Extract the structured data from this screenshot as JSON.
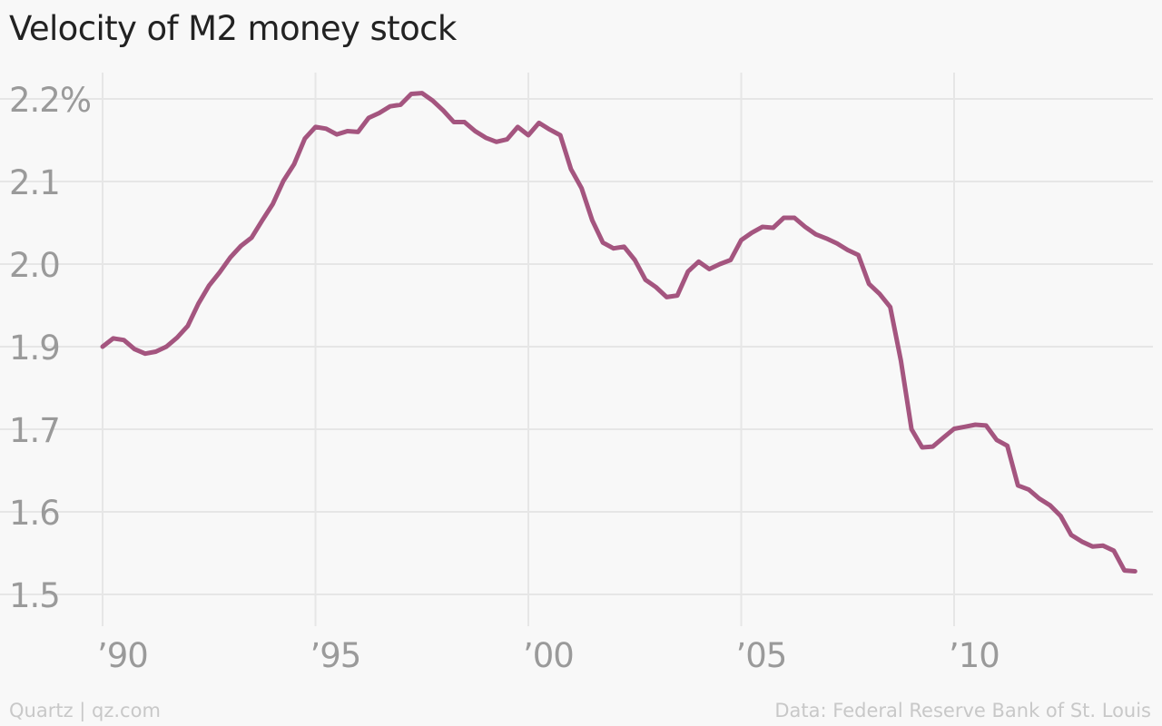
{
  "title": "Velocity of M2 money stock",
  "footer": {
    "source_left": "Quartz | qz.com",
    "source_right": "Data: Federal Reserve Bank of St. Louis"
  },
  "colors": {
    "line": "#a4557f",
    "grid": "#e6e6e6",
    "tick_text": "#9a9a9a",
    "background": "#f8f8f8"
  },
  "chart_data": {
    "type": "line",
    "title": "Velocity of M2 money stock",
    "xlabel": "",
    "ylabel": "",
    "grid": true,
    "xlim": [
      1990,
      2015
    ],
    "y_ticks": [
      {
        "value": 2.2,
        "label": "2.2%"
      },
      {
        "value": 2.1,
        "label": "2.1"
      },
      {
        "value": 2.0,
        "label": "2.0"
      },
      {
        "value": 1.9,
        "label": "1.9"
      },
      {
        "value": 1.7,
        "label": "1.7"
      },
      {
        "value": 1.6,
        "label": "1.6"
      },
      {
        "value": 1.5,
        "label": "1.5"
      }
    ],
    "x_ticks": [
      {
        "value": 1990,
        "label": "’90"
      },
      {
        "value": 1995,
        "label": "’95"
      },
      {
        "value": 2000,
        "label": "’00"
      },
      {
        "value": 2005,
        "label": "’05"
      },
      {
        "value": 2010,
        "label": "’10"
      }
    ],
    "series": [
      {
        "values": [
          [
            1990.0,
            1.9
          ],
          [
            1990.25,
            1.91
          ],
          [
            1990.5,
            1.908
          ],
          [
            1990.75,
            1.894
          ],
          [
            1991.0,
            1.883
          ],
          [
            1991.25,
            1.888
          ],
          [
            1991.5,
            1.9
          ],
          [
            1991.75,
            1.911
          ],
          [
            1992.0,
            1.925
          ],
          [
            1992.25,
            1.952
          ],
          [
            1992.5,
            1.974
          ],
          [
            1992.75,
            1.99
          ],
          [
            1993.0,
            2.008
          ],
          [
            1993.25,
            2.022
          ],
          [
            1993.5,
            2.032
          ],
          [
            1993.75,
            2.053
          ],
          [
            1994.0,
            2.073
          ],
          [
            1994.25,
            2.101
          ],
          [
            1994.5,
            2.121
          ],
          [
            1994.75,
            2.152
          ],
          [
            1995.0,
            2.166
          ],
          [
            1995.25,
            2.164
          ],
          [
            1995.5,
            2.157
          ],
          [
            1995.75,
            2.161
          ],
          [
            1996.0,
            2.16
          ],
          [
            1996.25,
            2.177
          ],
          [
            1996.5,
            2.183
          ],
          [
            1996.75,
            2.191
          ],
          [
            1997.0,
            2.193
          ],
          [
            1997.25,
            2.206
          ],
          [
            1997.5,
            2.207
          ],
          [
            1997.75,
            2.198
          ],
          [
            1998.0,
            2.186
          ],
          [
            1998.25,
            2.172
          ],
          [
            1998.5,
            2.172
          ],
          [
            1998.75,
            2.161
          ],
          [
            1999.0,
            2.153
          ],
          [
            1999.25,
            2.148
          ],
          [
            1999.5,
            2.151
          ],
          [
            1999.75,
            2.166
          ],
          [
            2000.0,
            2.156
          ],
          [
            2000.25,
            2.171
          ],
          [
            2000.5,
            2.163
          ],
          [
            2000.75,
            2.156
          ],
          [
            2001.0,
            2.115
          ],
          [
            2001.25,
            2.092
          ],
          [
            2001.5,
            2.053
          ],
          [
            2001.75,
            2.026
          ],
          [
            2002.0,
            2.019
          ],
          [
            2002.25,
            2.021
          ],
          [
            2002.5,
            2.005
          ],
          [
            2002.75,
            1.981
          ],
          [
            2003.0,
            1.972
          ],
          [
            2003.25,
            1.96
          ],
          [
            2003.5,
            1.962
          ],
          [
            2003.75,
            1.991
          ],
          [
            2004.0,
            2.003
          ],
          [
            2004.25,
            1.994
          ],
          [
            2004.5,
            2.0
          ],
          [
            2004.75,
            2.005
          ],
          [
            2005.0,
            2.029
          ],
          [
            2005.25,
            2.038
          ],
          [
            2005.5,
            2.045
          ],
          [
            2005.75,
            2.044
          ],
          [
            2006.0,
            2.056
          ],
          [
            2006.25,
            2.056
          ],
          [
            2006.5,
            2.045
          ],
          [
            2006.75,
            2.036
          ],
          [
            2007.0,
            2.031
          ],
          [
            2007.25,
            2.025
          ],
          [
            2007.5,
            2.017
          ],
          [
            2007.75,
            2.011
          ],
          [
            2008.0,
            1.976
          ],
          [
            2008.25,
            1.964
          ],
          [
            2008.5,
            1.948
          ],
          [
            2008.75,
            1.866
          ],
          [
            2009.0,
            1.7
          ],
          [
            2009.25,
            1.678
          ],
          [
            2009.5,
            1.679
          ],
          [
            2009.75,
            1.69
          ],
          [
            2010.0,
            1.701
          ],
          [
            2010.25,
            1.706
          ],
          [
            2010.5,
            1.711
          ],
          [
            2010.75,
            1.709
          ],
          [
            2011.0,
            1.687
          ],
          [
            2011.25,
            1.68
          ],
          [
            2011.5,
            1.632
          ],
          [
            2011.75,
            1.627
          ],
          [
            2012.0,
            1.616
          ],
          [
            2012.25,
            1.608
          ],
          [
            2012.5,
            1.595
          ],
          [
            2012.75,
            1.572
          ],
          [
            2013.0,
            1.564
          ],
          [
            2013.25,
            1.558
          ],
          [
            2013.5,
            1.559
          ],
          [
            2013.75,
            1.553
          ],
          [
            2014.0,
            1.529
          ],
          [
            2014.25,
            1.528
          ]
        ]
      }
    ]
  }
}
